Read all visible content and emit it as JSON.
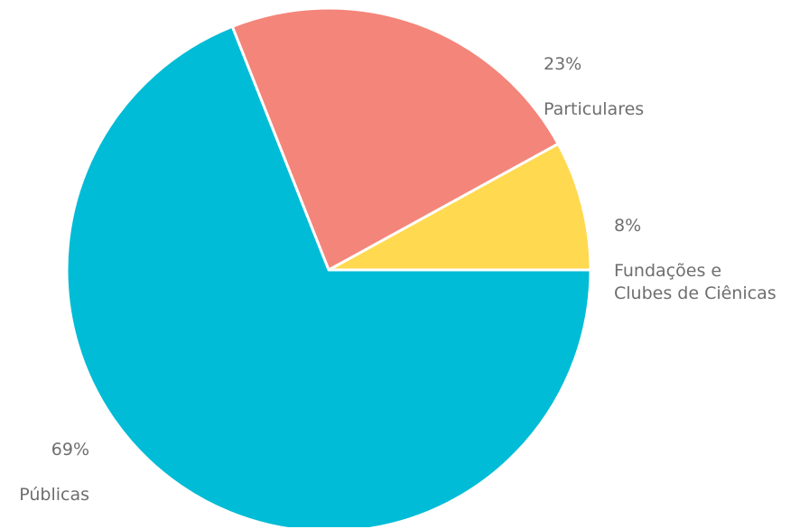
{
  "chart_data": {
    "type": "pie",
    "slices": [
      {
        "label": "Fundações e\nClubes de Ciênicas",
        "percent_label": "8%",
        "value": 8,
        "color": "#FFD94F"
      },
      {
        "label": "Particulares",
        "percent_label": "23%",
        "value": 23,
        "color": "#F4857A"
      },
      {
        "label": "Públicas",
        "percent_label": "69%",
        "value": 69,
        "color": "#00BCD6"
      }
    ]
  }
}
